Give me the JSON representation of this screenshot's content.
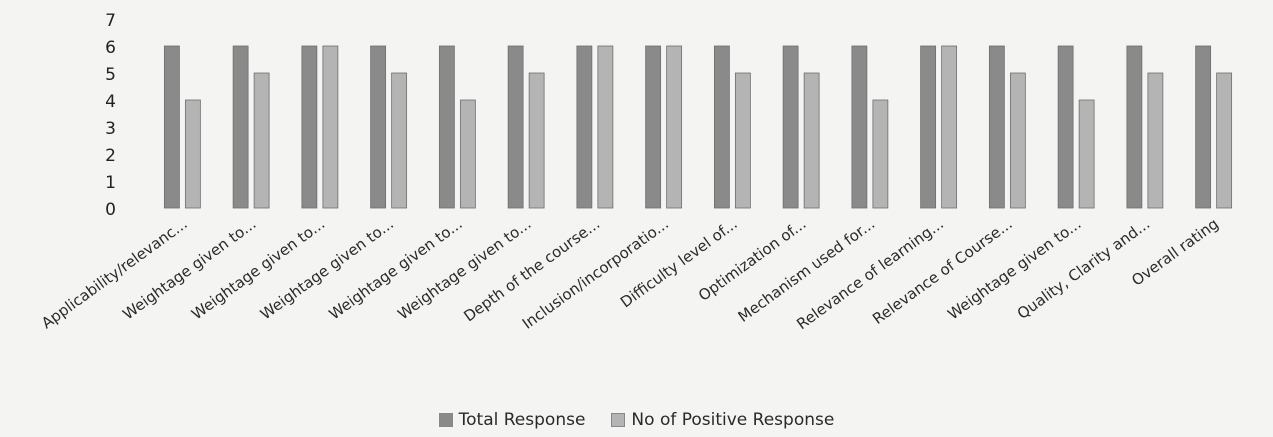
{
  "chart_data": {
    "type": "bar",
    "title": "",
    "xlabel": "",
    "ylabel": "",
    "ylim": [
      0,
      7
    ],
    "yticks": [
      0,
      1,
      2,
      3,
      4,
      5,
      6,
      7
    ],
    "grid": false,
    "legend_position": "bottom",
    "categories": [
      "Applicability/relevanc...",
      "Weightage given to...",
      "Weightage given to...",
      "Weightage given to...",
      "Weightage given to...",
      "Weightage given to...",
      "Depth of the course...",
      "Inclusion/incorporatio...",
      "Difficulty level of...",
      "Optimization of...",
      "Mechanism used for...",
      "Relevance of learning...",
      "Relevance of Course...",
      "Weightage given to...",
      "Quality, Clarity and...",
      "Overall rating"
    ],
    "series": [
      {
        "name": "Total Response",
        "color": "#8a8a8a",
        "values": [
          6,
          6,
          6,
          6,
          6,
          6,
          6,
          6,
          6,
          6,
          6,
          6,
          6,
          6,
          6,
          6
        ]
      },
      {
        "name": "No of Positive Response",
        "color": "#b4b4b4",
        "values": [
          4,
          5,
          6,
          5,
          4,
          5,
          6,
          6,
          5,
          5,
          4,
          6,
          5,
          4,
          5,
          5
        ]
      }
    ]
  }
}
